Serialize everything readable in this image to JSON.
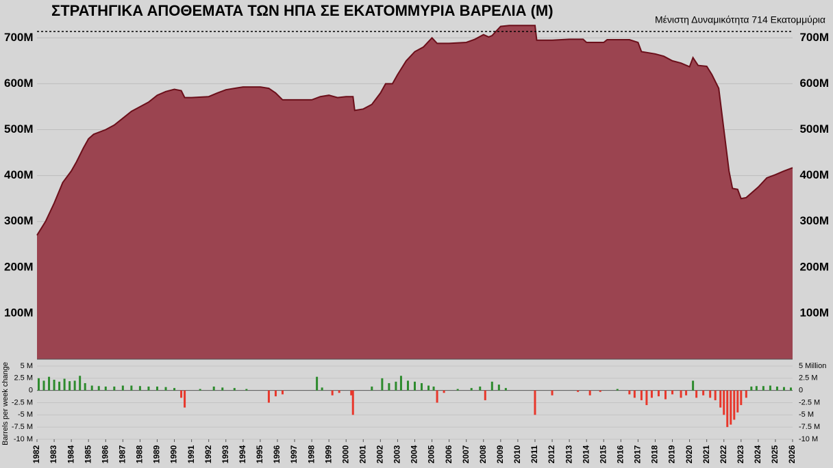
{
  "chart_data": [
    {
      "type": "area",
      "title": "ΣΤΡΑΤΗΓΙΚΑ ΑΠΟΘΕΜΑΤΑ ΤΩΝ ΗΠΑ ΣΕ ΕΚΑΤΟΜΜΥΡΙΑ ΒΑΡΕΛΙΑ (M)",
      "annotation": "Μένιστη Δυναμικότητα 714 Εκατομμύρια",
      "capacity_line": 714,
      "color": "#9b4450",
      "line_color": "#6b0f1a",
      "xlim": [
        1982,
        2026
      ],
      "ylim": [
        0,
        740
      ],
      "yticks": [
        {
          "value": 100,
          "label": "100M"
        },
        {
          "value": 200,
          "label": "200M"
        },
        {
          "value": 300,
          "label": "300M"
        },
        {
          "value": 400,
          "label": "400M"
        },
        {
          "value": 500,
          "label": "500M"
        },
        {
          "value": 600,
          "label": "600M"
        },
        {
          "value": 700,
          "label": "700M"
        }
      ],
      "grid": true,
      "x": [
        1982.0,
        1982.5,
        1983,
        1983.5,
        1984,
        1984.3,
        1984.7,
        1985,
        1985.3,
        1986,
        1986.5,
        1987,
        1987.5,
        1988,
        1988.5,
        1989,
        1989.5,
        1990,
        1990.4,
        1990.6,
        1991,
        1992,
        1992.5,
        1993,
        1993.5,
        1994,
        1995,
        1995.5,
        1995.9,
        1996.3,
        1997,
        1998,
        1998.5,
        1999,
        1999.5,
        2000,
        2000.4,
        2000.5,
        2001,
        2001.5,
        2002,
        2002.3,
        2002.7,
        2003,
        2003.5,
        2004,
        2004.5,
        2005,
        2005.3,
        2006,
        2007,
        2007.5,
        2008,
        2008.3,
        2008.5,
        2009,
        2009.5,
        2011,
        2011.1,
        2012,
        2013,
        2013.8,
        2014,
        2015,
        2015.2,
        2016,
        2016.5,
        2017,
        2017.2,
        2018,
        2018.5,
        2019,
        2019.5,
        2020,
        2020.2,
        2020.5,
        2021,
        2021.3,
        2021.7,
        2022,
        2022.3,
        2022.5,
        2022.8,
        2023,
        2023.3,
        2024,
        2024.5,
        2025,
        2025.5,
        2026
      ],
      "values": [
        270,
        300,
        340,
        385,
        410,
        430,
        460,
        480,
        490,
        500,
        510,
        525,
        540,
        550,
        560,
        575,
        583,
        588,
        585,
        570,
        570,
        572,
        580,
        587,
        590,
        593,
        593,
        590,
        580,
        565,
        565,
        565,
        572,
        575,
        570,
        572,
        572,
        542,
        545,
        555,
        580,
        600,
        600,
        620,
        650,
        670,
        680,
        700,
        688,
        688,
        690,
        697,
        707,
        702,
        705,
        725,
        727,
        727,
        695,
        695,
        697,
        697,
        690,
        690,
        696,
        696,
        696,
        690,
        670,
        665,
        660,
        650,
        645,
        637,
        657,
        640,
        638,
        620,
        590,
        500,
        410,
        372,
        370,
        350,
        352,
        375,
        395,
        402,
        410,
        417
      ]
    },
    {
      "type": "bar",
      "ylabel": "Barrels per week change",
      "positive_color": "#2e8b2e",
      "negative_color": "#e8372b",
      "xlim": [
        1982,
        2026
      ],
      "xticks": [
        1982,
        1983,
        1984,
        1985,
        1986,
        1987,
        1988,
        1989,
        1990,
        1991,
        1992,
        1993,
        1994,
        1995,
        1996,
        1997,
        1998,
        1999,
        2000,
        2001,
        2002,
        2003,
        2004,
        2005,
        2006,
        2007,
        2008,
        2009,
        2010,
        2011,
        2012,
        2013,
        2014,
        2015,
        2016,
        2017,
        2018,
        2019,
        2020,
        2021,
        2022,
        2023,
        2024,
        2025,
        2026
      ],
      "ylim": [
        -10,
        5
      ],
      "yticks": [
        {
          "value": 5,
          "label": "5 M"
        },
        {
          "value": 2.5,
          "label": "2.5 M"
        },
        0,
        {
          "value": -2.5,
          "label": "-2.5 M"
        },
        {
          "value": -5,
          "label": "-5 M"
        },
        {
          "value": -7.5,
          "label": "-7.5 M"
        },
        {
          "value": -10,
          "label": "-10 M"
        }
      ],
      "y2lim": [
        -10,
        5
      ],
      "y2ticks": [
        {
          "value": 5,
          "label": "5 Million"
        },
        {
          "value": 2.5,
          "label": "2.5 M"
        },
        0,
        {
          "value": -2.5,
          "label": "-2.5 M"
        },
        {
          "value": -5,
          "label": "-5 M"
        },
        {
          "value": -7.5,
          "label": "-7.5 M"
        },
        {
          "value": -10,
          "label": "-10 M"
        }
      ],
      "x": [
        1982.1,
        1982.4,
        1982.7,
        1983.0,
        1983.3,
        1983.6,
        1983.9,
        1984.2,
        1984.5,
        1984.8,
        1985.2,
        1985.6,
        1986.0,
        1986.5,
        1987,
        1987.5,
        1988,
        1988.5,
        1989,
        1989.5,
        1990,
        1990.4,
        1990.6,
        1991.5,
        1992.3,
        1992.8,
        1993.5,
        1994.2,
        1995.5,
        1995.9,
        1996.3,
        1998.3,
        1998.6,
        1999.2,
        1999.6,
        2000.3,
        2000.4,
        2001.5,
        2002.1,
        2002.5,
        2002.9,
        2003.2,
        2003.6,
        2004.0,
        2004.4,
        2004.8,
        2005.1,
        2005.3,
        2005.7,
        2006.5,
        2007.3,
        2007.8,
        2008.1,
        2008.5,
        2008.9,
        2009.3,
        2011.0,
        2012.0,
        2013.5,
        2014.2,
        2014.8,
        2015.8,
        2016.5,
        2016.8,
        2017.2,
        2017.5,
        2017.8,
        2018.2,
        2018.6,
        2019.0,
        2019.5,
        2019.8,
        2020.2,
        2020.4,
        2020.8,
        2021.2,
        2021.5,
        2021.8,
        2022.0,
        2022.2,
        2022.4,
        2022.6,
        2022.8,
        2023.0,
        2023.3,
        2023.6,
        2023.9,
        2024.3,
        2024.7,
        2025.1,
        2025.5,
        2025.9
      ],
      "values": [
        2.5,
        2.0,
        2.8,
        2.2,
        1.8,
        2.4,
        1.9,
        2.0,
        3.0,
        1.5,
        1.0,
        0.9,
        0.8,
        0.8,
        1.0,
        1.0,
        0.9,
        0.8,
        0.8,
        0.7,
        0.5,
        -1.5,
        -3.5,
        0.3,
        0.8,
        0.6,
        0.5,
        0.3,
        -2.5,
        -1.2,
        -0.8,
        2.8,
        0.6,
        -1.0,
        -0.5,
        -1.0,
        -5.0,
        0.8,
        2.5,
        1.5,
        1.8,
        3.0,
        2.0,
        1.8,
        1.5,
        1.0,
        0.8,
        -2.5,
        -0.5,
        0.3,
        0.5,
        0.8,
        -2.0,
        1.8,
        1.2,
        0.5,
        -5.0,
        -1.0,
        -0.3,
        -1.0,
        -0.3,
        0.3,
        -0.8,
        -1.5,
        -2.0,
        -3.0,
        -1.5,
        -1.2,
        -1.8,
        -0.8,
        -1.5,
        -1.0,
        2.0,
        -1.5,
        -1.0,
        -1.5,
        -2.0,
        -3.5,
        -5.0,
        -7.5,
        -7.0,
        -6.0,
        -4.5,
        -3.0,
        -1.5,
        0.8,
        0.9,
        0.9,
        1.0,
        0.8,
        0.7,
        0.6
      ]
    }
  ]
}
